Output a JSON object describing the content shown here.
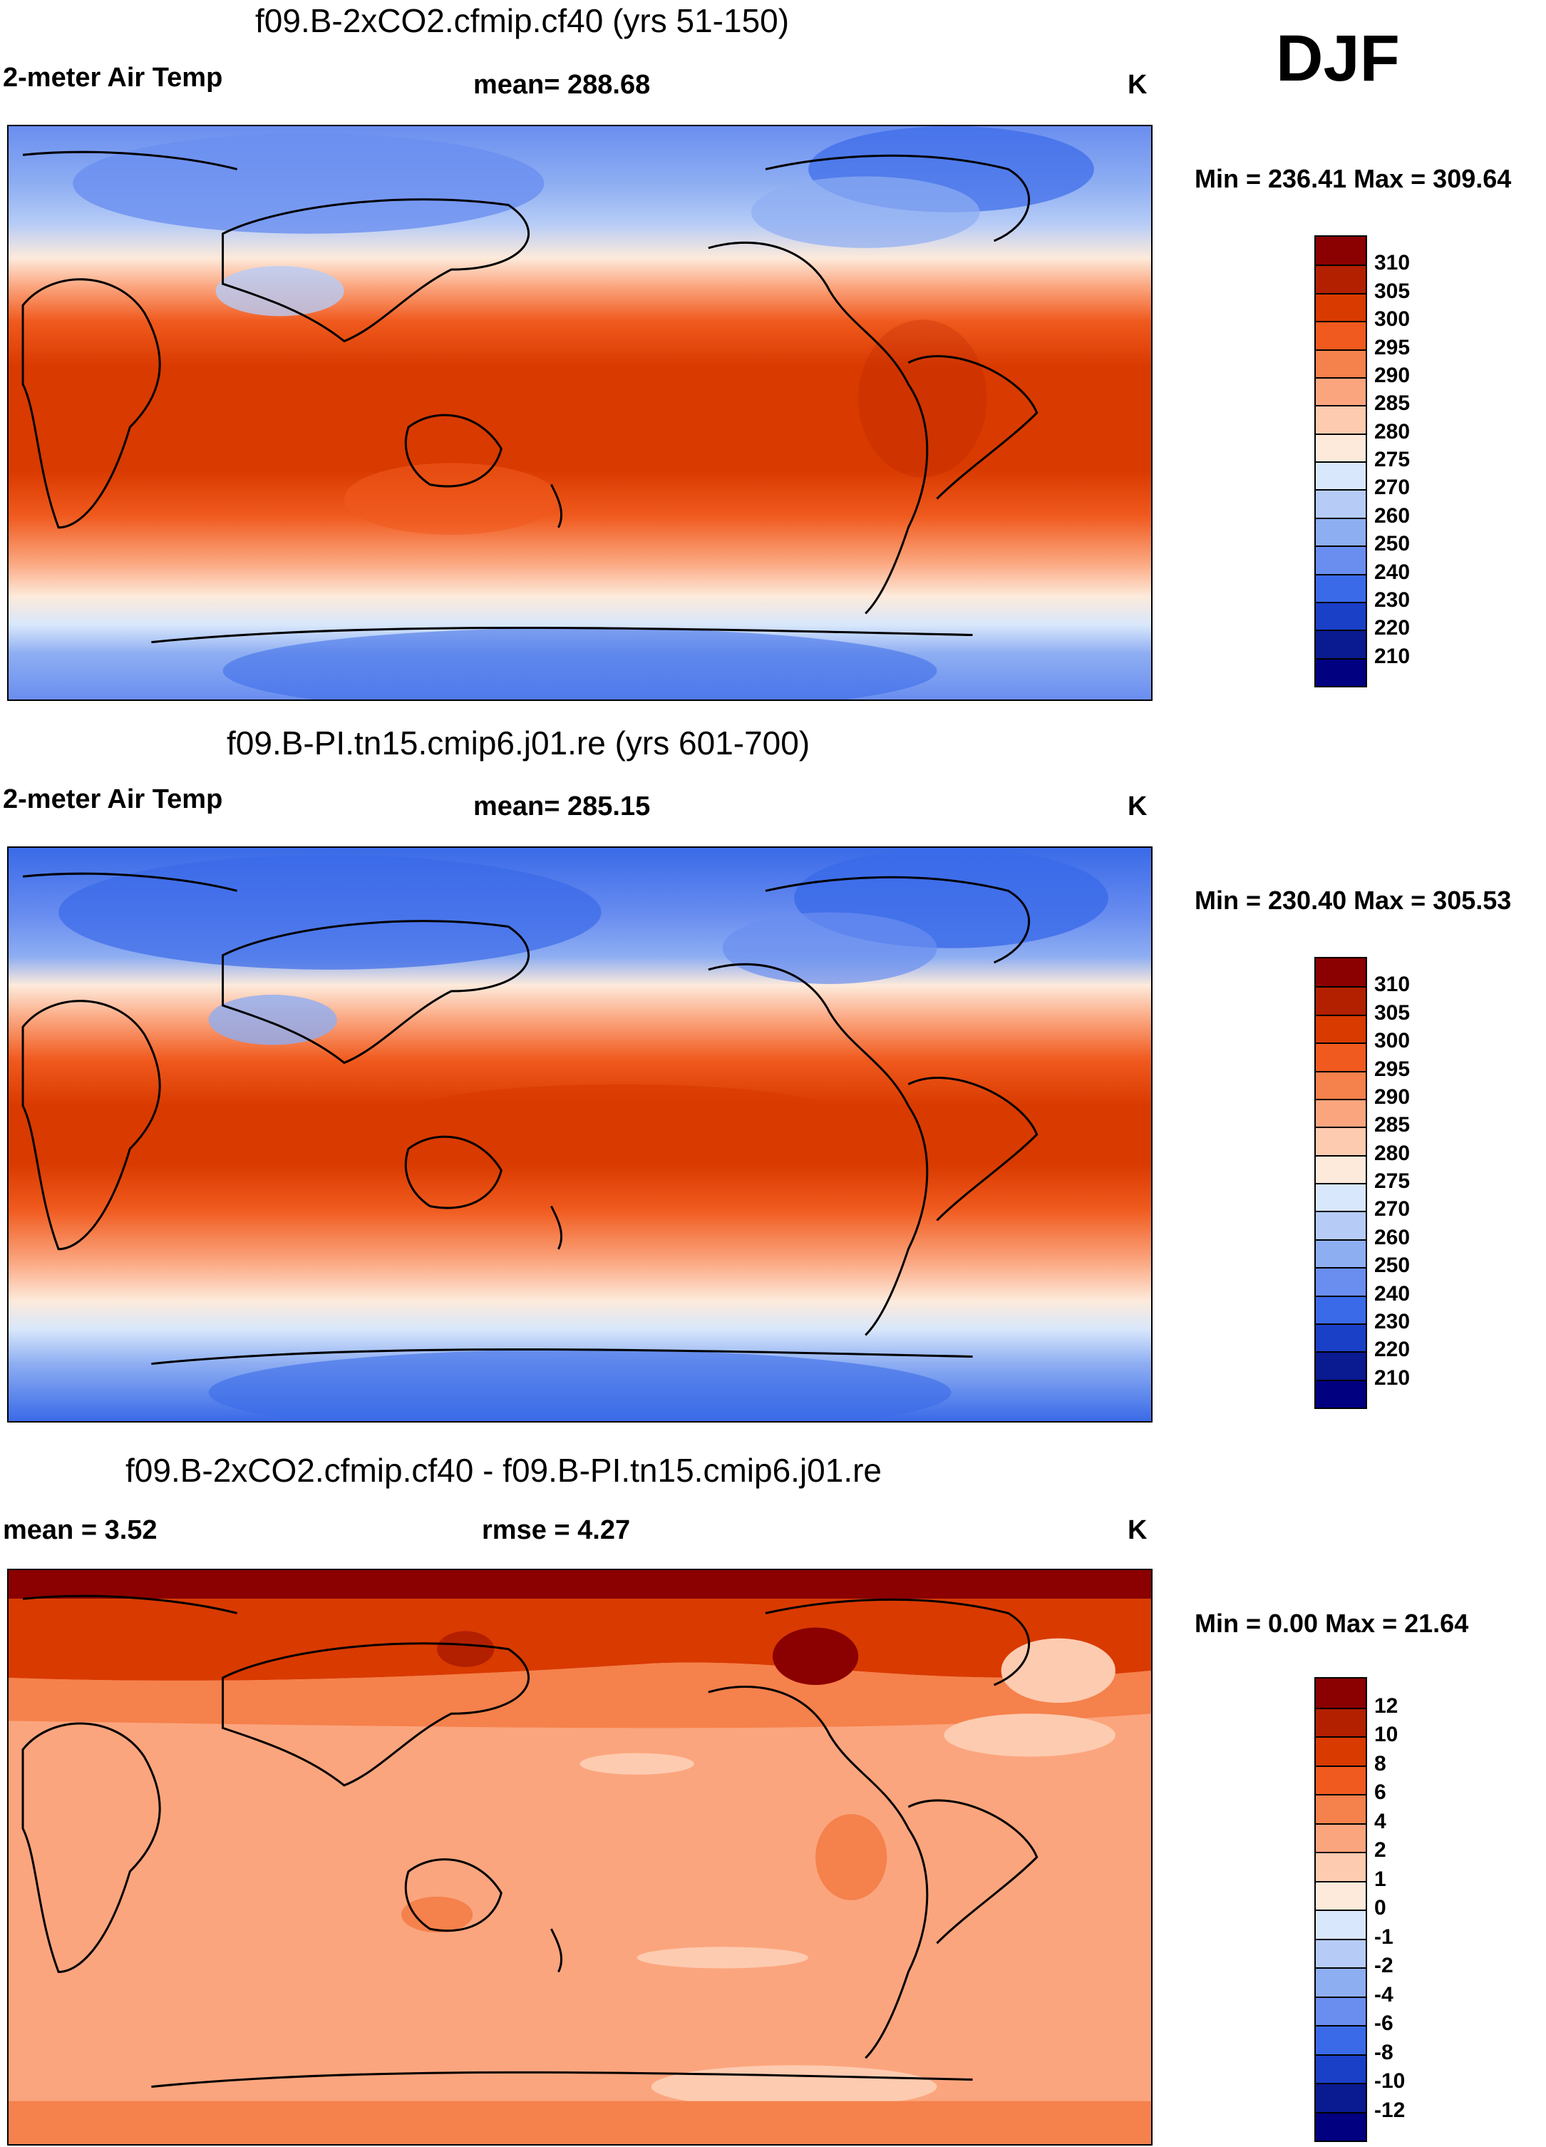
{
  "season": "DJF",
  "panels": [
    {
      "title": "f09.B-2xCO2.cfmip.cf40 (yrs 51-150)",
      "variable": "2-meter Air Temp",
      "stat_label": "mean= 288.68",
      "units": "K",
      "range_text": "Min = 236.41 Max = 309.64"
    },
    {
      "title": "f09.B-PI.tn15.cmip6.j01.re (yrs 601-700)",
      "variable": "2-meter Air Temp",
      "stat_label": "mean= 285.15",
      "units": "K",
      "range_text": "Min = 230.40 Max = 305.53"
    },
    {
      "title": "f09.B-2xCO2.cfmip.cf40 - f09.B-PI.tn15.cmip6.j01.re",
      "mean_text": "mean =   3.52",
      "rmse_text": "rmse =   4.27",
      "units": "K",
      "range_text": "Min =   0.00 Max =  21.64"
    }
  ],
  "colorbars": {
    "temperature": {
      "labels": [
        "310",
        "305",
        "300",
        "295",
        "290",
        "285",
        "280",
        "275",
        "270",
        "260",
        "250",
        "240",
        "230",
        "220",
        "210"
      ],
      "colors": [
        "#8b0000",
        "#b22000",
        "#d93a00",
        "#f05a1e",
        "#f5814c",
        "#fba57e",
        "#fdcbb0",
        "#fdeadb",
        "#d8e7fb",
        "#b6ccf7",
        "#8eaef2",
        "#6a8ef0",
        "#3a6ae8",
        "#1a40c8",
        "#0a1a90",
        "#000080"
      ]
    },
    "difference": {
      "labels": [
        "12",
        "10",
        "8",
        "6",
        "4",
        "2",
        "1",
        "0",
        "-1",
        "-2",
        "-4",
        "-6",
        "-8",
        "-10",
        "-12"
      ],
      "colors": [
        "#8b0000",
        "#b22000",
        "#d93a00",
        "#f05a1e",
        "#f5814c",
        "#fba57e",
        "#fdcbb0",
        "#fdeadb",
        "#d8e7fb",
        "#b6ccf7",
        "#8eaef2",
        "#6a8ef0",
        "#3a6ae8",
        "#1a40c8",
        "#0a1a90",
        "#000080"
      ]
    }
  }
}
